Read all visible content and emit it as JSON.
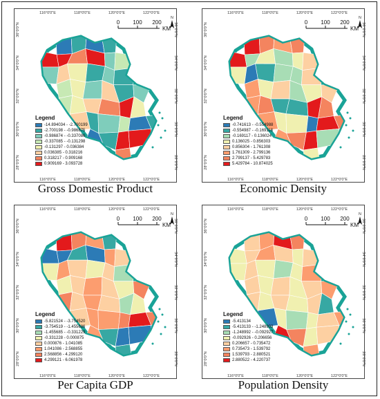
{
  "axis_ticks": {
    "x": [
      "116°0'0\"E",
      "118°0'0\"E",
      "120°0'0\"E",
      "122°0'0\"E"
    ],
    "y_left": [
      "36°0'0\"N",
      "34°0'0\"N",
      "32°0'0\"N",
      "30°0'0\"N",
      "28°0'0\"N"
    ],
    "y_right": [
      "36°0'0\"N",
      "34°0'0\"N",
      "32°0'0\"N",
      "30°0'0\"N",
      "28°0'0\"N"
    ]
  },
  "scalebar": {
    "labels": [
      "0",
      "100",
      "200"
    ],
    "unit": "KM",
    "north": "N"
  },
  "legend_title": "Legend",
  "panels": [
    {
      "title": "Gross Domestic Product",
      "legend": [
        {
          "range": "-14.894034 - -2.700199",
          "color": "#2c7bb6"
        },
        {
          "range": "-2.700198 - -0.986875",
          "color": "#37a8a3"
        },
        {
          "range": "-0.986874 - -0.337086",
          "color": "#7fcdbb"
        },
        {
          "range": "-0.337085 - -0.131298",
          "color": "#c7e9b4"
        },
        {
          "range": "-0.131297 - 0.036384",
          "color": "#f0f0b0"
        },
        {
          "range": "0.036385 - 0.318216",
          "color": "#fdd0a2"
        },
        {
          "range": "0.318217 - 0.909168",
          "color": "#f4845f"
        },
        {
          "range": "0.909169 - 3.093728",
          "color": "#e31a1c"
        }
      ]
    },
    {
      "title": "Economic Density",
      "legend": [
        {
          "range": "-0.741613 - -0.554988",
          "color": "#2c7bb6"
        },
        {
          "range": "-0.554987 - -0.169118",
          "color": "#37a8a3"
        },
        {
          "range": "-0.169117 - 0.136024",
          "color": "#a8ddb5"
        },
        {
          "range": "0.136025 - 0.856303",
          "color": "#f0f0b0"
        },
        {
          "range": "0.856304 - 1.761308",
          "color": "#fdd0a2"
        },
        {
          "range": "1.761309 - 2.799136",
          "color": "#fc9d6f"
        },
        {
          "range": "2.799137 - 5.429783",
          "color": "#f4845f"
        },
        {
          "range": "5.429784 - 10.874025",
          "color": "#e31a1c"
        }
      ]
    },
    {
      "title": "Per Capita GDP",
      "legend": [
        {
          "range": "-5.821524 - -3.754520",
          "color": "#2c7bb6"
        },
        {
          "range": "-3.754519 - -1.455686",
          "color": "#37a8a3"
        },
        {
          "range": "-1.455685 - -0.331229",
          "color": "#a8ddb5"
        },
        {
          "range": "-0.331228 - 0.000875",
          "color": "#f0f0b0"
        },
        {
          "range": "0.000876 - 1.041085",
          "color": "#fdd0a2"
        },
        {
          "range": "1.041086 - 2.568855",
          "color": "#fc9d6f"
        },
        {
          "range": "2.568856 - 4.299120",
          "color": "#f4845f"
        },
        {
          "range": "4.299121 - 6.061978",
          "color": "#e31a1c"
        }
      ]
    },
    {
      "title": "Population Density",
      "legend": [
        {
          "range": "-5.413134",
          "color": "#2c7bb6"
        },
        {
          "range": "-5.413133 - -1.248993",
          "color": "#37a8a3"
        },
        {
          "range": "-1.248992 - -0.092927",
          "color": "#a8ddb5"
        },
        {
          "range": "-0.092926 - 0.206656",
          "color": "#f0f0b0"
        },
        {
          "range": "0.206657 - 0.735472",
          "color": "#fdd0a2"
        },
        {
          "range": "0.735473 - 1.539792",
          "color": "#fc9d6f"
        },
        {
          "range": "1.539793 - 2.880521",
          "color": "#f4845f"
        },
        {
          "range": "2.880522 - 4.220737",
          "color": "#e31a1c"
        }
      ]
    }
  ],
  "region_fill_index": [
    [
      0,
      1,
      0,
      1,
      7,
      7,
      6,
      7,
      2,
      3,
      2,
      5,
      4,
      1,
      2,
      1,
      3,
      4,
      2,
      5,
      1,
      2,
      3,
      4,
      5,
      6,
      7,
      4,
      5,
      1,
      2,
      3
    ],
    [
      7,
      6,
      5,
      6,
      7,
      2,
      3,
      2,
      3,
      4,
      3,
      0,
      1,
      2,
      2,
      4,
      5,
      3,
      4,
      2,
      3,
      4,
      5,
      6,
      1,
      1,
      7,
      6,
      5,
      3,
      3,
      0
    ],
    [
      7,
      6,
      5,
      1,
      0,
      0,
      1,
      0,
      5,
      4,
      3,
      5,
      4,
      3,
      4,
      2,
      3,
      4,
      5,
      4,
      3,
      6,
      6,
      4,
      5,
      4,
      2,
      3,
      4,
      5,
      5,
      6
    ],
    [
      4,
      5,
      7,
      6,
      3,
      4,
      5,
      4,
      3,
      4,
      3,
      4,
      3,
      2,
      3,
      5,
      4,
      3,
      4,
      3,
      4,
      5,
      4,
      3,
      4,
      3,
      4,
      1,
      0,
      3,
      2,
      3
    ]
  ]
}
